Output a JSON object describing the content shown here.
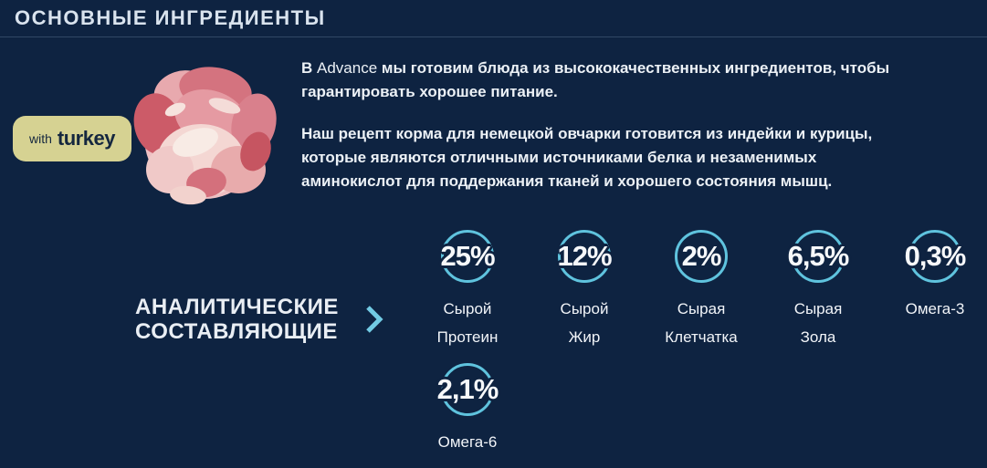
{
  "header": {
    "title": "ОСНОВНЫЕ ИНГРЕДИЕНТЫ"
  },
  "badge": {
    "prefix": "with",
    "flavor": "turkey"
  },
  "intro": {
    "p1_before": "В ",
    "brand": "Advance",
    "p1_after": " мы готовим блюда из высококачественных ингредиентов, чтобы гарантировать хорошее питание.",
    "p2": "Наш рецепт корма для немецкой овчарки готовится из индейки и курицы, которые являются отличными источниками белка и незаменимых аминокислот для поддержания тканей и хорошего состояния мышц."
  },
  "analytical": {
    "line1": "АНАЛИТИЧЕСКИЕ",
    "line2": "СОСТАВЛЯЮЩИЕ",
    "chevron_icon": "chevron-right"
  },
  "chart_data": {
    "type": "kpi-circles",
    "title": "Аналитические составляющие",
    "items": [
      {
        "value": "25%",
        "label": "Сырой Протеин",
        "label_lines": [
          "Сырой",
          "Протеин"
        ],
        "row": 1
      },
      {
        "value": "12%",
        "label": "Сырой Жир",
        "label_lines": [
          "Сырой",
          "Жир"
        ],
        "row": 1
      },
      {
        "value": "2%",
        "label": "Сырая Клетчатка",
        "label_lines": [
          "Сырая",
          "Клетчатка"
        ],
        "row": 1
      },
      {
        "value": "6,5%",
        "label": "Сырая Зола",
        "label_lines": [
          "Сырая",
          "Зола"
        ],
        "row": 1
      },
      {
        "value": "0,3%",
        "label": "Омега-3",
        "label_lines": [
          "Омега-3"
        ],
        "row": 1
      },
      {
        "value": "2,1%",
        "label": "Омега-6",
        "label_lines": [
          "Омега-6"
        ],
        "row": 2
      }
    ]
  },
  "colors": {
    "background": "#0e2341",
    "accent_ring": "#5fc3de",
    "badge_background": "#d6d292",
    "badge_text": "#15273f",
    "body_text": "#ecf1f6"
  }
}
